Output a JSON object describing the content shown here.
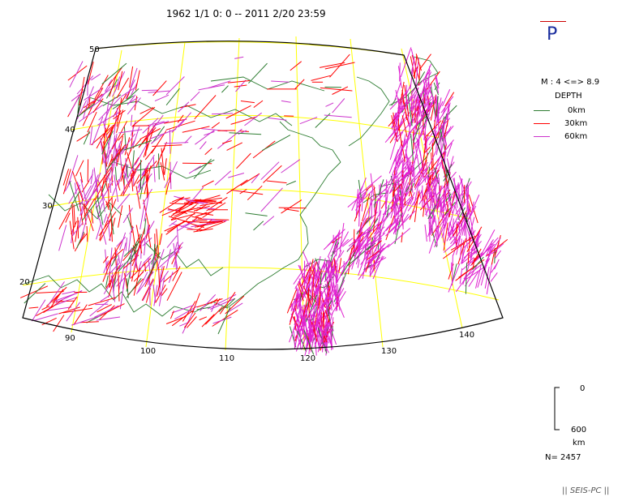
{
  "header": {
    "period": "1962 1/1 0: 0 -- 2011 2/20 23:59",
    "mechanism": "P"
  },
  "legend": {
    "magnitude": "M : 4 <=> 8.9",
    "depth_title": "DEPTH",
    "depth_levels": [
      "0km",
      "30km",
      "60km"
    ],
    "depth_colors": [
      "#2e7d32",
      "#ff0000",
      "#cc33cc"
    ]
  },
  "scale": {
    "top": "0",
    "bottom": "600",
    "unit": "km"
  },
  "count": "N= 2457",
  "credit": "|| SEIS-PC ||",
  "grid": {
    "lat_labels": [
      "50",
      "40",
      "30",
      "20"
    ],
    "lon_labels": [
      "90",
      "100",
      "110",
      "120",
      "130",
      "140"
    ]
  },
  "colors": {
    "grid": "#ffff00",
    "coast": "#2e7d32",
    "frame": "#000000",
    "title_p": "#1a2d9e"
  }
}
